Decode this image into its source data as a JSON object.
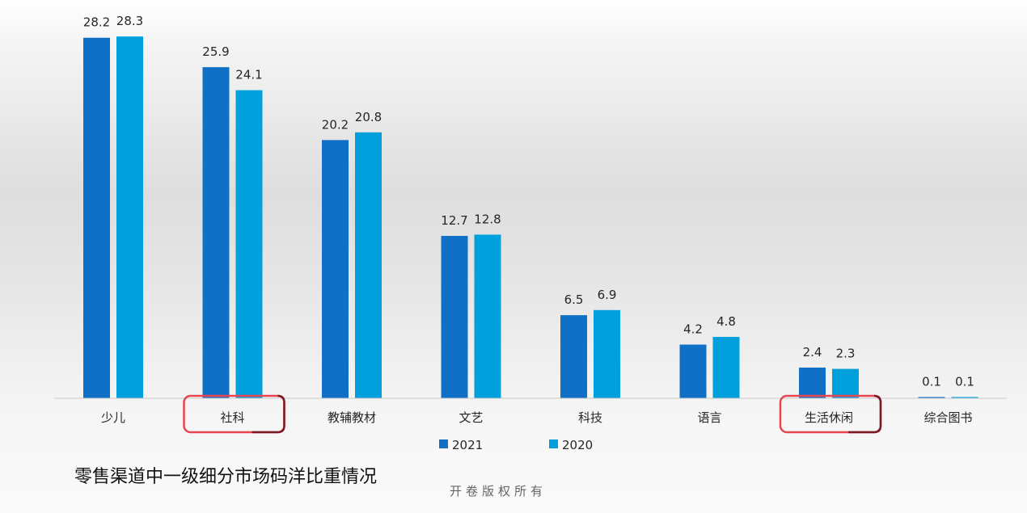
{
  "chart_data": {
    "type": "bar",
    "categories": [
      "少儿",
      "社科",
      "教辅教材",
      "文艺",
      "科技",
      "语言",
      "生活休闲",
      "综合图书"
    ],
    "series": [
      {
        "name": "2021",
        "color": "#1070c6",
        "values": [
          28.2,
          25.9,
          20.2,
          12.7,
          6.5,
          4.2,
          2.4,
          0.1
        ]
      },
      {
        "name": "2020",
        "color": "#00a0dc",
        "values": [
          28.3,
          24.1,
          20.8,
          12.8,
          6.9,
          4.8,
          2.3,
          0.1
        ]
      }
    ],
    "value_labels": [
      [
        "28.2",
        "25.9",
        "20.2",
        "12.7",
        "6.5",
        "4.2",
        "2.4",
        "0.1"
      ],
      [
        "28.3",
        "24.1",
        "20.8",
        "12.8",
        "6.9",
        "4.8",
        "2.3",
        "0.1"
      ]
    ],
    "ylim": [
      0,
      28.5
    ],
    "legend": "bottom",
    "highlighted_categories": [
      "社科",
      "生活休闲"
    ],
    "highlight_color": "#e8454f",
    "title": "零售渠道中一级细分市场码洋比重情况"
  },
  "watermark": "开卷版权所有"
}
